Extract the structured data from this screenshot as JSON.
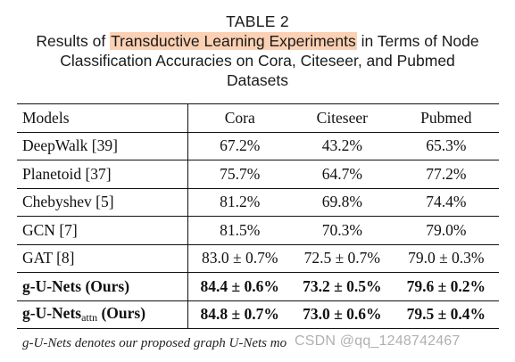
{
  "caption": {
    "title": "TABLE 2",
    "line1_pre": "Results of ",
    "line1_highlight": "Transductive Learning Experiments",
    "line1_post": " in Terms of Node",
    "line2": "Classification Accuracies on Cora, Citeseer, and Pubmed",
    "line3": "Datasets"
  },
  "table": {
    "headers": [
      "Models",
      "Cora",
      "Citeseer",
      "Pubmed"
    ],
    "rows": [
      {
        "model": "DeepWalk [39]",
        "cora": "67.2%",
        "citeseer": "43.2%",
        "pubmed": "65.3%"
      },
      {
        "model": "Planetoid [37]",
        "cora": "75.7%",
        "citeseer": "64.7%",
        "pubmed": "77.2%"
      },
      {
        "model": "Chebyshev [5]",
        "cora": "81.2%",
        "citeseer": "69.8%",
        "pubmed": "74.4%"
      },
      {
        "model": "GCN [7]",
        "cora": "81.5%",
        "citeseer": "70.3%",
        "pubmed": "79.0%"
      },
      {
        "model": "GAT [8]",
        "cora": "83.0 ± 0.7%",
        "citeseer": "72.5 ± 0.7%",
        "pubmed": "79.0 ± 0.3%"
      },
      {
        "model": "g-U-Nets (Ours)",
        "cora": "84.4 ± 0.6%",
        "citeseer": "73.2 ± 0.5%",
        "pubmed": "79.6 ± 0.2%"
      },
      {
        "model_pre": "g-U-Nets",
        "model_sub": "attn",
        "model_post": " (Ours)",
        "cora": "84.8 ± 0.7%",
        "citeseer": "73.0 ± 0.6%",
        "pubmed": "79.5 ± 0.4%"
      }
    ]
  },
  "footnote": "g-U-Nets denotes our proposed graph U-Nets mo",
  "watermark": "CSDN @qq_1248742467",
  "colors": {
    "highlight": "#fbd0b3",
    "text": "#111111",
    "watermark": "#969696"
  }
}
